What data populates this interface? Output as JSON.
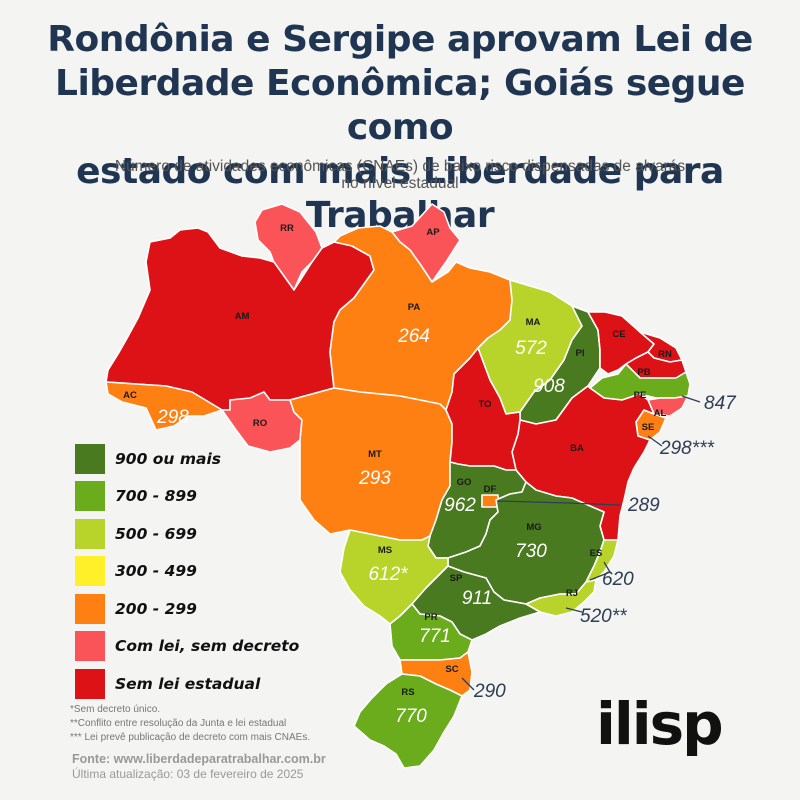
{
  "title_lines": [
    "Rondônia e Sergipe aprovam Lei de",
    "Liberdade Econômica; Goiás segue como",
    "estado com mais Liberdade para Trabalhar"
  ],
  "subtitle_lines": [
    "Número de atividades econômicas (CNAEs) de baixo risco dispensadas de alvarás",
    "no nível estadual"
  ],
  "colors": {
    "c900": "#4a7a20",
    "c700": "#6aac1c",
    "c500": "#b8d42a",
    "c300": "#fff02a",
    "c200": "#ff8012",
    "lei": "#fb5458",
    "sem": "#dd1216"
  },
  "legend": [
    {
      "label": "900 ou mais",
      "color": "#4a7a20"
    },
    {
      "label": "700 - 899",
      "color": "#6aac1c"
    },
    {
      "label": "500 - 699",
      "color": "#b8d42a"
    },
    {
      "label": "300 - 499",
      "color": "#fff02a"
    },
    {
      "label": "200 - 299",
      "color": "#ff8012"
    },
    {
      "label": "Com lei, sem decreto",
      "color": "#fb5458"
    },
    {
      "label": "Sem lei estadual",
      "color": "#dd1216"
    }
  ],
  "states": {
    "RR": {
      "abbr": "RR",
      "value": ""
    },
    "AP": {
      "abbr": "AP",
      "value": ""
    },
    "AM": {
      "abbr": "AM",
      "value": ""
    },
    "PA": {
      "abbr": "PA",
      "value": "264"
    },
    "MA": {
      "abbr": "MA",
      "value": "572"
    },
    "PI": {
      "abbr": "PI",
      "value": "908"
    },
    "CE": {
      "abbr": "CE",
      "value": ""
    },
    "RN": {
      "abbr": "RN",
      "value": ""
    },
    "PB": {
      "abbr": "PB",
      "value": ""
    },
    "PE": {
      "abbr": "PE",
      "value": "847"
    },
    "AL": {
      "abbr": "AL",
      "value": ""
    },
    "SE": {
      "abbr": "SE",
      "value": "298***"
    },
    "BA": {
      "abbr": "BA",
      "value": ""
    },
    "AC": {
      "abbr": "AC",
      "value": "298"
    },
    "RO": {
      "abbr": "RO",
      "value": ""
    },
    "MT": {
      "abbr": "MT",
      "value": "293"
    },
    "TO": {
      "abbr": "TO",
      "value": ""
    },
    "GO": {
      "abbr": "GO",
      "value": "962"
    },
    "DF": {
      "abbr": "DF",
      "value": "289"
    },
    "MG": {
      "abbr": "MG",
      "value": "730"
    },
    "ES": {
      "abbr": "ES",
      "value": "620"
    },
    "RJ": {
      "abbr": "RJ",
      "value": "520**"
    },
    "MS": {
      "abbr": "MS",
      "value": "612*"
    },
    "SP": {
      "abbr": "SP",
      "value": "911"
    },
    "PR": {
      "abbr": "PR",
      "value": "771"
    },
    "SC": {
      "abbr": "SC",
      "value": "290"
    },
    "RS": {
      "abbr": "RS",
      "value": "770"
    }
  },
  "notes": [
    "*Sem decreto único.",
    "**Conflito entre resolução da Junta e lei estadual",
    "*** Lei prevê publicação de decreto com mais CNAEs."
  ],
  "source": "Fonte: www.liberdadeparatrabalhar.com.br",
  "updated": "Última atualização: 03 de fevereiro de 2025",
  "logo": "ilisp"
}
